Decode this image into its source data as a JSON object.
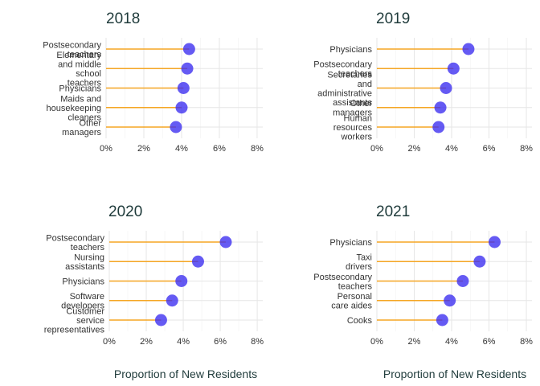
{
  "chart_data": [
    {
      "type": "lollipop",
      "title": "2018",
      "xlabel": "",
      "xlim": [
        0,
        8.3
      ],
      "xticks": [
        "0%",
        "2%",
        "4%",
        "6%",
        "8%"
      ],
      "categories": [
        [
          "Postsecondary",
          "teachers"
        ],
        [
          "Elementary",
          "and middle",
          "school",
          "teachers"
        ],
        [
          "Physicians"
        ],
        [
          "Maids and",
          "housekeeping",
          "cleaners"
        ],
        [
          "Other",
          "managers"
        ]
      ],
      "values": [
        4.4,
        4.3,
        4.1,
        4.0,
        3.7
      ]
    },
    {
      "type": "lollipop",
      "title": "2019",
      "xlabel": "",
      "xlim": [
        0,
        8.3
      ],
      "xticks": [
        "0%",
        "2%",
        "4%",
        "6%",
        "8%"
      ],
      "categories": [
        [
          "Physicians"
        ],
        [
          "Postsecondary",
          "teachers"
        ],
        [
          "Secretaries",
          "and",
          "administrative",
          "assistants"
        ],
        [
          "Other",
          "managers"
        ],
        [
          "Human",
          "resources",
          "workers"
        ]
      ],
      "values": [
        4.9,
        4.1,
        3.7,
        3.4,
        3.3
      ]
    },
    {
      "type": "lollipop",
      "title": "2020",
      "xlabel": "Proportion of New Residents",
      "xlim": [
        0,
        8.3
      ],
      "xticks": [
        "0%",
        "2%",
        "4%",
        "6%",
        "8%"
      ],
      "categories": [
        [
          "Postsecondary",
          "teachers"
        ],
        [
          "Nursing",
          "assistants"
        ],
        [
          "Physicians"
        ],
        [
          "Software",
          "developers"
        ],
        [
          "Customer",
          "service",
          "representatives"
        ]
      ],
      "values": [
        6.3,
        4.8,
        3.9,
        3.4,
        2.8
      ]
    },
    {
      "type": "lollipop",
      "title": "2021",
      "xlabel": "Proportion of New Residents",
      "xlim": [
        0,
        8.3
      ],
      "xticks": [
        "0%",
        "2%",
        "4%",
        "6%",
        "8%"
      ],
      "categories": [
        [
          "Physicians"
        ],
        [
          "Taxi",
          "drivers"
        ],
        [
          "Postsecondary",
          "teachers"
        ],
        [
          "Personal",
          "care aides"
        ],
        [
          "Cooks"
        ]
      ],
      "values": [
        6.3,
        5.5,
        4.6,
        3.9,
        3.5
      ]
    }
  ],
  "colors": {
    "stem": "#f5a623",
    "point": "#3a2bf0",
    "grid": "#e6e6e6",
    "title": "#1f3b3b",
    "label": "#333333"
  }
}
